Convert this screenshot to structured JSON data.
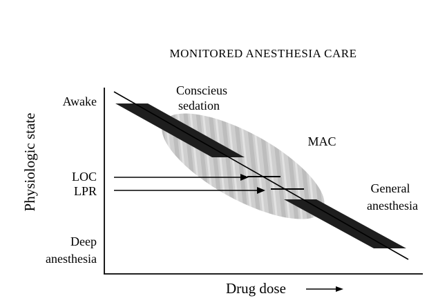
{
  "diagram": {
    "title": "MONITORED ANESTHESIA CARE",
    "y_axis_label": "Physiologic state",
    "x_axis_label": "Drug dose",
    "y_levels": {
      "awake": "Awake",
      "loc": "LOC",
      "lpr": "LPR",
      "deep_line1": "Deep",
      "deep_line2": "anesthesia"
    },
    "regions": {
      "conscious_line1": "Conscieus",
      "conscious_line2": "sedation",
      "mac": "MAC",
      "general_line1": "General",
      "general_line2": "anesthesia"
    },
    "colors": {
      "band": "#1e1e1e",
      "mac_ellipse": "#c8c8c8",
      "axis": "#000000"
    }
  }
}
